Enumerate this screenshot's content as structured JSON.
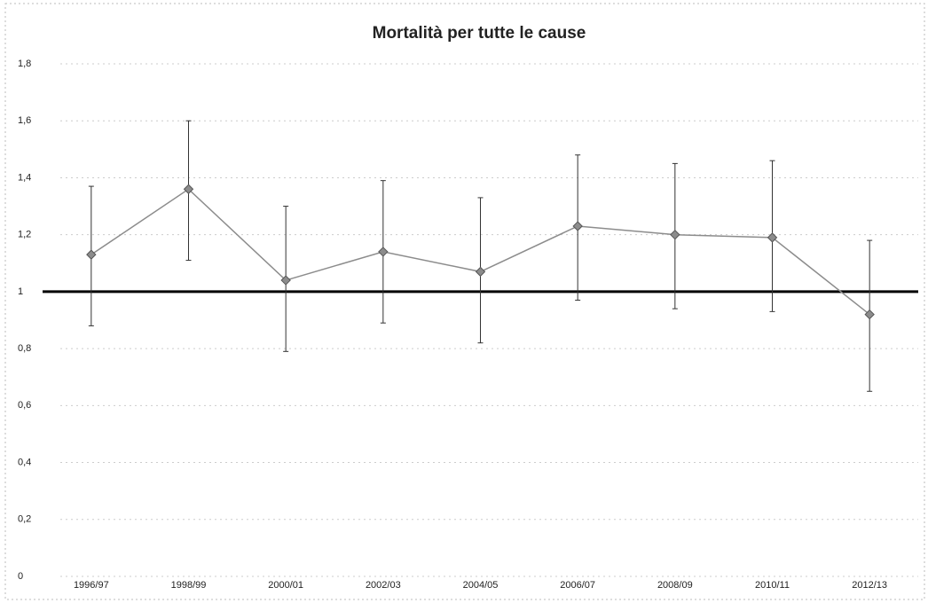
{
  "chart_data": {
    "type": "line",
    "title": "Mortalità per tutte le cause",
    "categories": [
      "1996/97",
      "1998/99",
      "2000/01",
      "2002/03",
      "2004/05",
      "2006/07",
      "2008/09",
      "2010/11",
      "2012/13"
    ],
    "series": [
      {
        "color": "#8c8c8c",
        "values": [
          1.13,
          1.36,
          1.04,
          1.14,
          1.07,
          1.23,
          1.2,
          1.19,
          0.92
        ],
        "ci_low": [
          0.88,
          1.11,
          0.79,
          0.89,
          0.82,
          0.97,
          0.94,
          0.93,
          0.65
        ],
        "ci_high": [
          1.37,
          1.6,
          1.3,
          1.39,
          1.33,
          1.48,
          1.45,
          1.46,
          1.18
        ]
      }
    ],
    "reference_line": 1,
    "ylim": [
      0,
      1.8
    ],
    "yticks": [
      0,
      {
        "value": 0.2,
        "label": "0,2"
      },
      {
        "value": 0.4,
        "label": "0,4"
      },
      {
        "value": 0.6,
        "label": "0,6"
      },
      {
        "value": 0.8,
        "label": "0,8"
      },
      1,
      {
        "value": 1.2,
        "label": "1,2"
      },
      {
        "value": 1.4,
        "label": "1,4"
      },
      {
        "value": 1.6,
        "label": "1,6"
      },
      {
        "value": 1.8,
        "label": "1,8"
      }
    ],
    "grid": true
  }
}
